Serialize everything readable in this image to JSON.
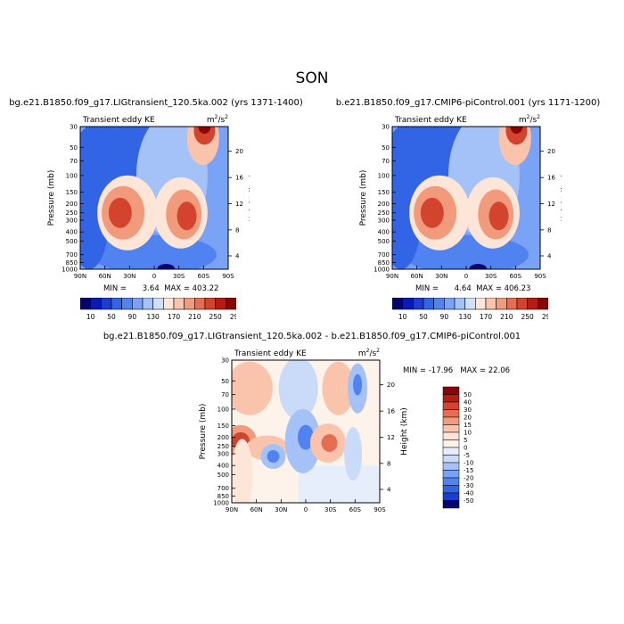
{
  "super_title": "SON",
  "panel_titles": [
    "bg.e21.B1850.f09_g17.LIGtransient_120.5ka.002 (yrs 1371-1400)",
    "b.e21.B1850.f09_g17.CMIP6-piControl.001 (yrs 1171-1200)",
    "bg.e21.B1850.f09_g17.LIGtransient_120.5ka.002 - b.e21.B1850.f09_g17.CMIP6-piControl.001"
  ],
  "left_label": "Transient eddy KE",
  "units": "m²/s²",
  "units_base": "m",
  "units_sup1": "2",
  "units_mid": "/s",
  "units_sup2": "2",
  "ylabel": "Pressure (mb)",
  "ylabel_right": "Height (km)",
  "xticks": [
    "90N",
    "60N",
    "30N",
    "0",
    "30S",
    "60S",
    "90S"
  ],
  "pressure_ticks": [
    "30",
    "50",
    "70",
    "100",
    "150",
    "200",
    "250",
    "300",
    "400",
    "500",
    "700",
    "850",
    "1000"
  ],
  "height_ticks": [
    "4",
    "8",
    "12",
    "16",
    "20"
  ],
  "stats": [
    {
      "min_label": "MIN =",
      "min": "3.64",
      "max_label": "MAX =",
      "max": "403.22"
    },
    {
      "min_label": "MIN =",
      "min": "4.64",
      "max_label": "MAX =",
      "max": "406.23"
    },
    {
      "min_label": "MIN =",
      "min": "-17.96",
      "max_label": "MAX =",
      "max": "22.06"
    }
  ],
  "colorbar_main": {
    "labels": [
      "10",
      "50",
      "90",
      "130",
      "170",
      "210",
      "250",
      "290"
    ],
    "colors": [
      "#05056e",
      "#0a1ab4",
      "#1e3cd2",
      "#3264e6",
      "#5082f0",
      "#7aa2f5",
      "#a5c2f8",
      "#d0e0fb",
      "#fde6d8",
      "#f9c4ab",
      "#f29a7c",
      "#e56e52",
      "#d2442e",
      "#b41c14",
      "#8a0606"
    ]
  },
  "colorbar_diff": {
    "labels": [
      "50",
      "40",
      "30",
      "20",
      "15",
      "10",
      "5",
      "0",
      "-5",
      "-10",
      "-15",
      "-20",
      "-30",
      "-40",
      "-50"
    ],
    "colors": [
      "#8a0606",
      "#b41c14",
      "#d2442e",
      "#e56e52",
      "#f29a7c",
      "#f9c4ab",
      "#fde6d8",
      "#fdf3ea",
      "#e7eefb",
      "#c9dbf9",
      "#a5c2f8",
      "#7aa2f5",
      "#5082f0",
      "#3264e6",
      "#1e3cd2",
      "#05056e"
    ]
  },
  "chart_data": [
    {
      "type": "heatmap",
      "title": "bg.e21.B1850.f09_g17.LIGtransient_120.5ka.002 (yrs 1371-1400)",
      "variable": "Transient eddy KE",
      "units": "m²/s²",
      "xlabel": "",
      "ylabel": "Pressure (mb)",
      "ylabel_right": "Height (km)",
      "x": [
        "90N",
        "60N",
        "30N",
        "0",
        "30S",
        "60S",
        "90S"
      ],
      "y_pressure": [
        30,
        50,
        70,
        100,
        150,
        200,
        250,
        300,
        400,
        500,
        700,
        850,
        1000
      ],
      "y_log": true,
      "min": 3.64,
      "max": 403.22,
      "contour_levels": [
        10,
        30,
        50,
        70,
        90,
        110,
        130,
        150,
        170,
        190,
        210,
        230,
        250,
        270,
        290
      ],
      "maxima": [
        {
          "lat": "45N",
          "pressure": 250,
          "value": 260
        },
        {
          "lat": "50S",
          "pressure": 250,
          "value": 270
        },
        {
          "lat": "60S",
          "pressure": 30,
          "value": 403.22
        }
      ]
    },
    {
      "type": "heatmap",
      "title": "b.e21.B1850.f09_g17.CMIP6-piControl.001 (yrs 1171-1200)",
      "variable": "Transient eddy KE",
      "units": "m²/s²",
      "xlabel": "",
      "ylabel": "Pressure (mb)",
      "ylabel_right": "Height (km)",
      "x": [
        "90N",
        "60N",
        "30N",
        "0",
        "30S",
        "60S",
        "90S"
      ],
      "y_pressure": [
        30,
        50,
        70,
        100,
        150,
        200,
        250,
        300,
        400,
        500,
        700,
        850,
        1000
      ],
      "y_log": true,
      "min": 4.64,
      "max": 406.23,
      "contour_levels": [
        10,
        30,
        50,
        70,
        90,
        110,
        130,
        150,
        170,
        190,
        210,
        230,
        250,
        270,
        290
      ],
      "maxima": [
        {
          "lat": "45N",
          "pressure": 250,
          "value": 260
        },
        {
          "lat": "50S",
          "pressure": 250,
          "value": 270
        },
        {
          "lat": "60S",
          "pressure": 30,
          "value": 406.23
        }
      ]
    },
    {
      "type": "heatmap",
      "title": "bg.e21.B1850.f09_g17.LIGtransient_120.5ka.002 - b.e21.B1850.f09_g17.CMIP6-piControl.001",
      "variable": "Transient eddy KE",
      "units": "m²/s²",
      "xlabel": "",
      "ylabel": "Pressure (mb)",
      "ylabel_right": "Height (km)",
      "x": [
        "90N",
        "60N",
        "30N",
        "0",
        "30S",
        "60S",
        "90S"
      ],
      "y_pressure": [
        30,
        50,
        70,
        100,
        150,
        200,
        250,
        300,
        400,
        500,
        700,
        850,
        1000
      ],
      "y_log": true,
      "min": -17.96,
      "max": 22.06,
      "contour_levels": [
        -50,
        -40,
        -30,
        -20,
        -15,
        -10,
        -5,
        0,
        5,
        10,
        15,
        20,
        30,
        40,
        50
      ],
      "features": [
        {
          "lat": "80N",
          "pressure": 220,
          "value": 15
        },
        {
          "lat": "30N",
          "pressure": 300,
          "value": -15
        },
        {
          "lat": "0",
          "pressure": 200,
          "value": -15
        },
        {
          "lat": "70S",
          "pressure": 50,
          "value": -15
        },
        {
          "lat": "40S",
          "pressure": 220,
          "value": 15
        }
      ]
    }
  ]
}
